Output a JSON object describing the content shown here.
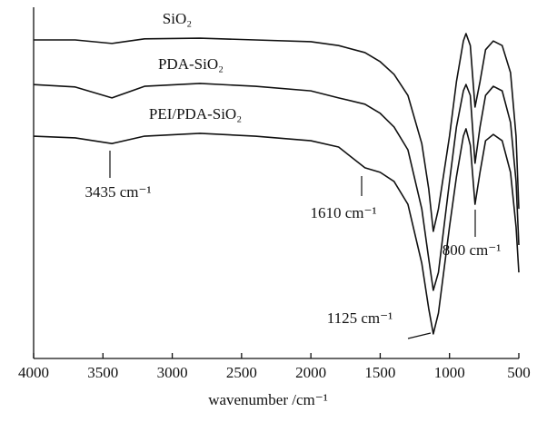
{
  "chart_data": {
    "type": "line",
    "x_label": "wavenumber /cm⁻¹",
    "xlim": [
      4000,
      500
    ],
    "xticks": [
      4000,
      3500,
      3000,
      2500,
      2000,
      1500,
      1000,
      500
    ],
    "ylim": [
      0,
      100
    ],
    "x": [
      4000,
      3700,
      3435,
      3200,
      2800,
      2400,
      2000,
      1800,
      1610,
      1500,
      1400,
      1300,
      1200,
      1150,
      1117,
      1080,
      1000,
      950,
      900,
      881,
      850,
      816,
      780,
      740,
      684,
      620,
      560,
      520,
      500
    ],
    "series": [
      {
        "name": "SiO₂",
        "color": "#111111",
        "values": [
          90.7,
          90.7,
          89.7,
          91.0,
          91.2,
          90.7,
          90.2,
          89.1,
          87.1,
          84.5,
          80.9,
          74.9,
          61.2,
          48.3,
          36.2,
          42.6,
          63.3,
          78.8,
          90.4,
          92.5,
          89.1,
          71.6,
          78.8,
          87.9,
          90.4,
          89.1,
          81.4,
          63.3,
          42.6
        ]
      },
      {
        "name": "PDA-SiO₂",
        "color": "#111111",
        "values": [
          78.0,
          77.3,
          74.2,
          77.5,
          78.3,
          77.5,
          76.2,
          74.2,
          72.4,
          69.8,
          65.9,
          59.4,
          42.6,
          28.4,
          19.4,
          24.5,
          50.4,
          65.9,
          76.2,
          78.0,
          74.9,
          55.6,
          65.9,
          74.9,
          77.5,
          76.2,
          67.2,
          50.4,
          32.3
        ]
      },
      {
        "name": "PEI/PDA-SiO₂",
        "color": "#111111",
        "values": [
          63.3,
          62.8,
          61.2,
          63.3,
          64.1,
          63.3,
          62.0,
          60.2,
          54.3,
          53.0,
          50.4,
          43.9,
          27.1,
          14.2,
          7.0,
          12.9,
          37.5,
          51.7,
          63.3,
          65.4,
          60.7,
          43.9,
          53.0,
          62.0,
          63.8,
          62.0,
          53.0,
          37.5,
          24.5
        ]
      }
    ],
    "annotations": [
      {
        "text": "3435 cm⁻¹"
      },
      {
        "text": "1610 cm⁻¹"
      },
      {
        "text": "800 cm⁻¹"
      },
      {
        "text": "1125 cm⁻¹"
      }
    ]
  }
}
